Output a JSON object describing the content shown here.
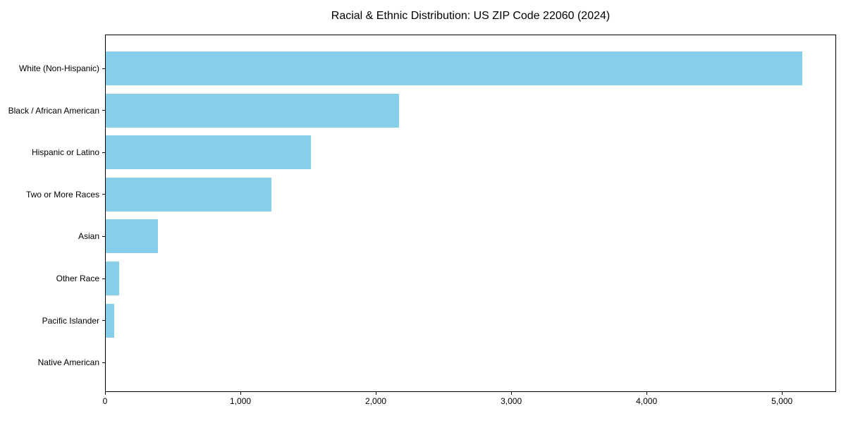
{
  "figure": {
    "background": "#ffffff"
  },
  "chart_data": {
    "type": "bar",
    "orientation": "horizontal",
    "title": "Racial & Ethnic Distribution: US ZIP Code 22060 (2024)",
    "xlabel": "",
    "ylabel": "",
    "categories": [
      "White (Non-Hispanic)",
      "Black / African American",
      "Hispanic or Latino",
      "Two or More Races",
      "Asian",
      "Other Race",
      "Pacific Islander",
      "Native American"
    ],
    "values": [
      5150,
      2170,
      1520,
      1230,
      390,
      105,
      65,
      0
    ],
    "xlim": [
      0,
      5400
    ],
    "x_ticks": [
      0,
      1000,
      2000,
      3000,
      4000,
      5000
    ],
    "x_tick_labels": [
      "0",
      "1,000",
      "2,000",
      "3,000",
      "4,000",
      "5,000"
    ],
    "bar_color": "#87CEEB",
    "axis_color": "#000000",
    "grid": false,
    "legend": null
  }
}
